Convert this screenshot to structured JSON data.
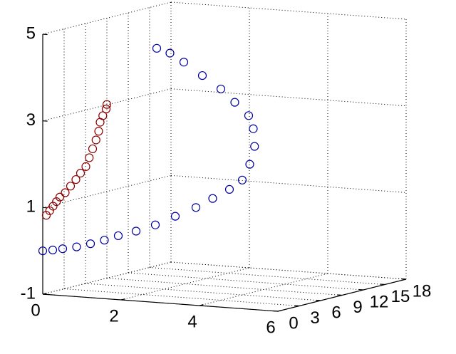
{
  "chart_data": {
    "type": "scatter3d",
    "xlim": [
      0,
      6
    ],
    "xticks": [
      0,
      2,
      4,
      6
    ],
    "ylim": [
      0,
      18
    ],
    "yticks": [
      0,
      3,
      6,
      9,
      12,
      15,
      18
    ],
    "zlim": [
      -1,
      5
    ],
    "zticks": [
      -1,
      1,
      3,
      5
    ],
    "grid": true,
    "series": [
      {
        "color": "#0000a0",
        "x": [
          0,
          0.2,
          0.4,
          0.7,
          1.0,
          1.3,
          1.6,
          2.0,
          2.4,
          2.8,
          3.2,
          3.5,
          3.8,
          4.0,
          4.1,
          4.15,
          4.1,
          4.0,
          3.7,
          3.4,
          3.0,
          2.6,
          2.3,
          2.0
        ],
        "y": [
          0,
          0.3,
          0.6,
          0.9,
          1.2,
          1.5,
          1.8,
          2.1,
          2.6,
          3.2,
          3.9,
          4.6,
          5.3,
          6.0,
          6.5,
          6.9,
          7.0,
          6.9,
          6.6,
          6.3,
          5.9,
          5.5,
          5.2,
          5.0
        ],
        "z": [
          0,
          0.02,
          0.05,
          0.1,
          0.18,
          0.27,
          0.38,
          0.5,
          0.65,
          0.85,
          1.05,
          1.25,
          1.45,
          1.65,
          2.0,
          2.4,
          2.8,
          3.1,
          3.4,
          3.7,
          4.0,
          4.3,
          4.5,
          4.6
        ]
      },
      {
        "color": "#8b0000",
        "x": [
          0,
          0.05,
          0.1,
          0.15,
          0.2,
          0.3,
          0.4,
          0.5,
          0.6,
          0.7,
          0.75,
          0.8,
          0.85,
          0.9,
          0.9,
          0.95,
          1.0,
          1.0
        ],
        "y": [
          0.5,
          0.7,
          0.9,
          1.1,
          1.3,
          1.5,
          1.7,
          1.9,
          2.0,
          2.2,
          2.4,
          2.6,
          2.8,
          2.9,
          3.1,
          3.2,
          3.4,
          3.5
        ],
        "z": [
          0.8,
          0.9,
          1.0,
          1.1,
          1.2,
          1.3,
          1.45,
          1.6,
          1.75,
          1.9,
          2.1,
          2.3,
          2.5,
          2.7,
          2.9,
          3.05,
          3.2,
          3.3
        ]
      }
    ]
  }
}
